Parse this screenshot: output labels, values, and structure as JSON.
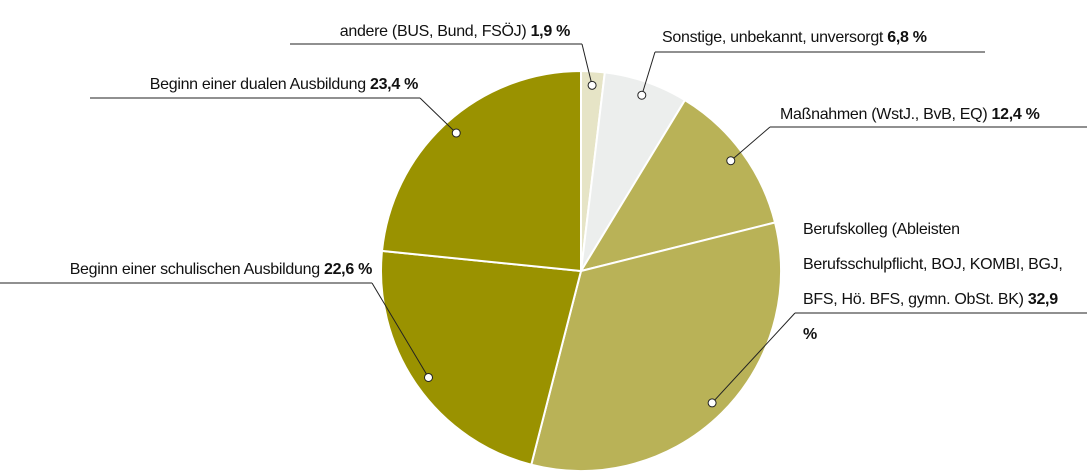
{
  "chart_data": {
    "type": "pie",
    "categories": [
      "andere (BUS, Bund, FSÖJ)",
      "Sonstige, unbekannt, unversorgt",
      "Maßnahmen (WstJ., BvB, EQ)",
      "Berufskolleg (Ableisten Berufsschulpflicht, BOJ, KOMBI, BGJ, BFS, Hö. BFS, gymn. ObSt. BK)",
      "Beginn einer schulischen Ausbildung",
      "Beginn einer dualen Ausbildung"
    ],
    "values": [
      1.9,
      6.8,
      12.4,
      32.9,
      22.6,
      23.4
    ],
    "value_labels": [
      "1,9 %",
      "6,8 %",
      "12,4 %",
      "32,9 %",
      "22,6 %",
      "23,4 %"
    ],
    "colors": [
      "#e6e4c6",
      "#eceeed",
      "#b9b257",
      "#b9b257",
      "#9a9200",
      "#9a9200"
    ]
  }
}
